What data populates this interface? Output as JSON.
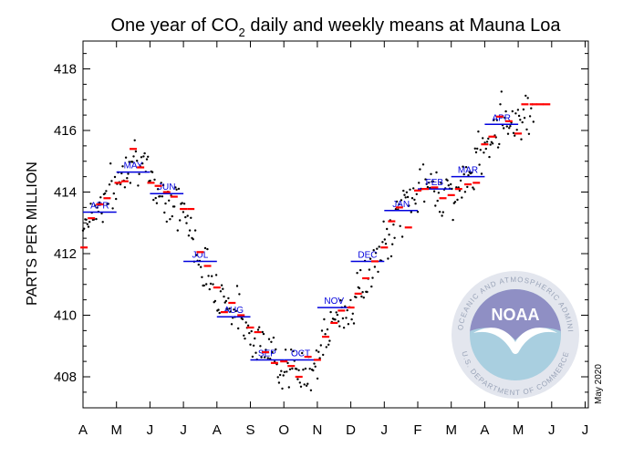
{
  "title": {
    "prefix": "One year of CO",
    "sub": "2",
    "suffix": " daily and weekly means at Mauna Loa"
  },
  "date_stamp": "May 2020",
  "logo": {
    "wordmark": "NOAA",
    "ring_top": "NATIONAL OCEANIC AND ATMOSPHERIC ADMINISTRATION",
    "ring_bottom": "U.S. DEPARTMENT OF COMMERCE"
  },
  "colors": {
    "daily": "#000000",
    "weekly": "#ff0000",
    "monthly": "#0000dd",
    "logo_ring": "#e3e6ee",
    "logo_sky": "#8f8fc4",
    "logo_sea": "#a9cfe0"
  },
  "chart_data": {
    "type": "scatter",
    "title": "One year of CO2 daily and weekly means at Mauna Loa",
    "xlabel": "",
    "ylabel": "PARTS PER MILLION",
    "ylim": [
      407,
      419
    ],
    "yticks": [
      "408",
      "410",
      "412",
      "414",
      "416",
      "418"
    ],
    "xlim": [
      0,
      15
    ],
    "xticks": [
      "A",
      "M",
      "J",
      "J",
      "A",
      "S",
      "O",
      "N",
      "D",
      "J",
      "F",
      "M",
      "A",
      "M",
      "J",
      "J"
    ],
    "grid": false,
    "monthly_means": [
      {
        "label": "APR",
        "x_start": 0.0,
        "x_end": 1.0,
        "value": 413.35
      },
      {
        "label": "MAY",
        "x_start": 1.0,
        "x_end": 2.0,
        "value": 414.65
      },
      {
        "label": "JUN",
        "x_start": 2.0,
        "x_end": 3.0,
        "value": 413.95
      },
      {
        "label": "JUL",
        "x_start": 3.0,
        "x_end": 4.0,
        "value": 411.75
      },
      {
        "label": "AUG",
        "x_start": 4.0,
        "x_end": 5.0,
        "value": 409.95
      },
      {
        "label": "SEP",
        "x_start": 5.0,
        "x_end": 6.0,
        "value": 408.55
      },
      {
        "label": "OCT",
        "x_start": 6.0,
        "x_end": 7.0,
        "value": 408.55
      },
      {
        "label": "NOV",
        "x_start": 7.0,
        "x_end": 8.0,
        "value": 410.25
      },
      {
        "label": "DEC",
        "x_start": 8.0,
        "x_end": 9.0,
        "value": 411.75
      },
      {
        "label": "JAN",
        "x_start": 9.0,
        "x_end": 10.0,
        "value": 413.4
      },
      {
        "label": "FEB",
        "x_start": 10.0,
        "x_end": 11.0,
        "value": 414.1
      },
      {
        "label": "MAR",
        "x_start": 11.0,
        "x_end": 12.0,
        "value": 414.5
      },
      {
        "label": "APR",
        "x_start": 12.0,
        "x_end": 13.0,
        "value": 416.2
      }
    ],
    "weekly_means": [
      [
        0.03,
        412.2
      ],
      [
        0.25,
        413.15
      ],
      [
        0.5,
        413.6
      ],
      [
        0.72,
        413.8
      ],
      [
        1.05,
        414.3
      ],
      [
        1.25,
        414.35
      ],
      [
        1.5,
        415.4
      ],
      [
        1.72,
        414.8
      ],
      [
        2.03,
        414.3
      ],
      [
        2.25,
        414.2
      ],
      [
        2.5,
        414.0
      ],
      [
        2.72,
        413.85
      ],
      [
        3.0,
        413.45
      ],
      [
        3.22,
        413.45
      ],
      [
        3.5,
        412.05
      ],
      [
        3.72,
        411.6
      ],
      [
        4.0,
        410.9
      ],
      [
        4.22,
        410.1
      ],
      [
        4.45,
        410.4
      ],
      [
        4.72,
        410.0
      ],
      [
        5.0,
        409.6
      ],
      [
        5.22,
        409.45
      ],
      [
        5.45,
        408.8
      ],
      [
        5.72,
        408.45
      ],
      [
        6.0,
        408.5
      ],
      [
        6.22,
        408.35
      ],
      [
        6.45,
        408.0
      ],
      [
        6.72,
        408.65
      ],
      [
        7.0,
        408.55
      ],
      [
        7.25,
        409.3
      ],
      [
        7.5,
        409.75
      ],
      [
        7.72,
        410.15
      ],
      [
        8.0,
        410.25
      ],
      [
        8.22,
        410.7
      ],
      [
        8.45,
        411.2
      ],
      [
        8.72,
        411.75
      ],
      [
        9.0,
        412.2
      ],
      [
        9.22,
        413.05
      ],
      [
        9.45,
        413.5
      ],
      [
        9.72,
        412.85
      ],
      [
        10.0,
        414.05
      ],
      [
        10.22,
        414.1
      ],
      [
        10.5,
        414.15
      ],
      [
        10.75,
        413.8
      ],
      [
        11.0,
        413.9
      ],
      [
        11.22,
        414.1
      ],
      [
        11.5,
        414.25
      ],
      [
        11.75,
        414.3
      ],
      [
        12.0,
        415.55
      ],
      [
        12.22,
        415.8
      ],
      [
        12.45,
        416.45
      ],
      [
        12.72,
        416.3
      ],
      [
        13.0,
        415.9
      ],
      [
        13.2,
        416.85
      ],
      [
        13.45,
        416.85
      ],
      [
        13.65,
        416.85
      ],
      [
        13.85,
        416.85
      ]
    ],
    "daily_spread_ppm": [
      [
        0.0,
        413.0
      ],
      [
        1.0,
        414.2
      ],
      [
        1.5,
        415.4
      ],
      [
        2.0,
        414.3
      ],
      [
        3.0,
        413.4
      ],
      [
        3.6,
        411.5
      ],
      [
        4.0,
        410.9
      ],
      [
        5.0,
        409.5
      ],
      [
        5.5,
        408.8
      ],
      [
        6.0,
        408.4
      ],
      [
        6.5,
        408.0
      ],
      [
        7.0,
        408.6
      ],
      [
        7.5,
        409.8
      ],
      [
        8.0,
        410.3
      ],
      [
        9.0,
        412.2
      ],
      [
        9.5,
        413.4
      ],
      [
        10.0,
        414.1
      ],
      [
        10.5,
        414.2
      ],
      [
        11.0,
        413.9
      ],
      [
        11.5,
        414.3
      ],
      [
        12.0,
        415.6
      ],
      [
        12.5,
        416.4
      ],
      [
        13.0,
        416.3
      ],
      [
        13.5,
        416.9
      ],
      [
        13.9,
        416.9
      ]
    ]
  }
}
